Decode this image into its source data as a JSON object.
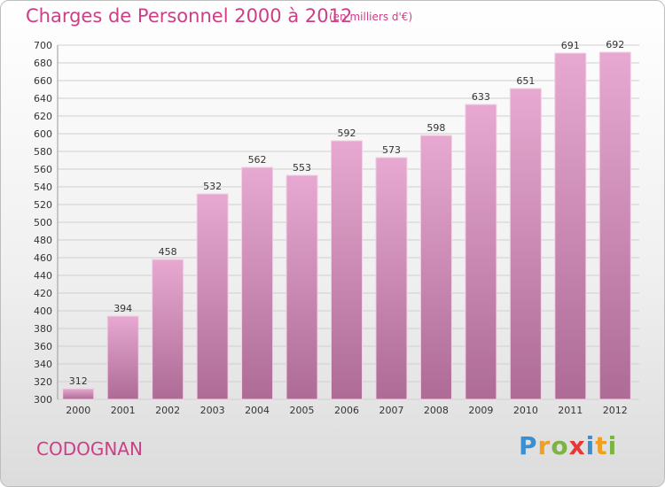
{
  "header": {
    "title": "Charges de Personnel 2000 à 2012",
    "subtitle": "(en milliers d'€)"
  },
  "commune_name": "CODOGNAN",
  "brand": {
    "letters": [
      {
        "ch": "P",
        "color": "#3a8fd3"
      },
      {
        "ch": "r",
        "color": "#f0a020"
      },
      {
        "ch": "o",
        "color": "#7cb342"
      },
      {
        "ch": "x",
        "color": "#e53935"
      },
      {
        "ch": "i",
        "color": "#3a8fd3"
      },
      {
        "ch": "t",
        "color": "#f0a020"
      },
      {
        "ch": "i",
        "color": "#7cb342"
      }
    ]
  },
  "colors": {
    "bar_light": "#e7a9d1",
    "bar_dark": "#ad6b95",
    "grid": "#cfcfcf"
  },
  "chart_data": {
    "type": "bar",
    "title": "Charges de Personnel 2000 à 2012",
    "subtitle": "(en milliers d'€)",
    "categories": [
      "2000",
      "2001",
      "2002",
      "2003",
      "2004",
      "2005",
      "2006",
      "2007",
      "2008",
      "2009",
      "2010",
      "2011",
      "2012"
    ],
    "values": [
      312,
      394,
      458,
      532,
      562,
      553,
      592,
      573,
      598,
      633,
      651,
      691,
      692
    ],
    "ylim": [
      300,
      700
    ],
    "ytick_step": 20,
    "grid": true
  }
}
